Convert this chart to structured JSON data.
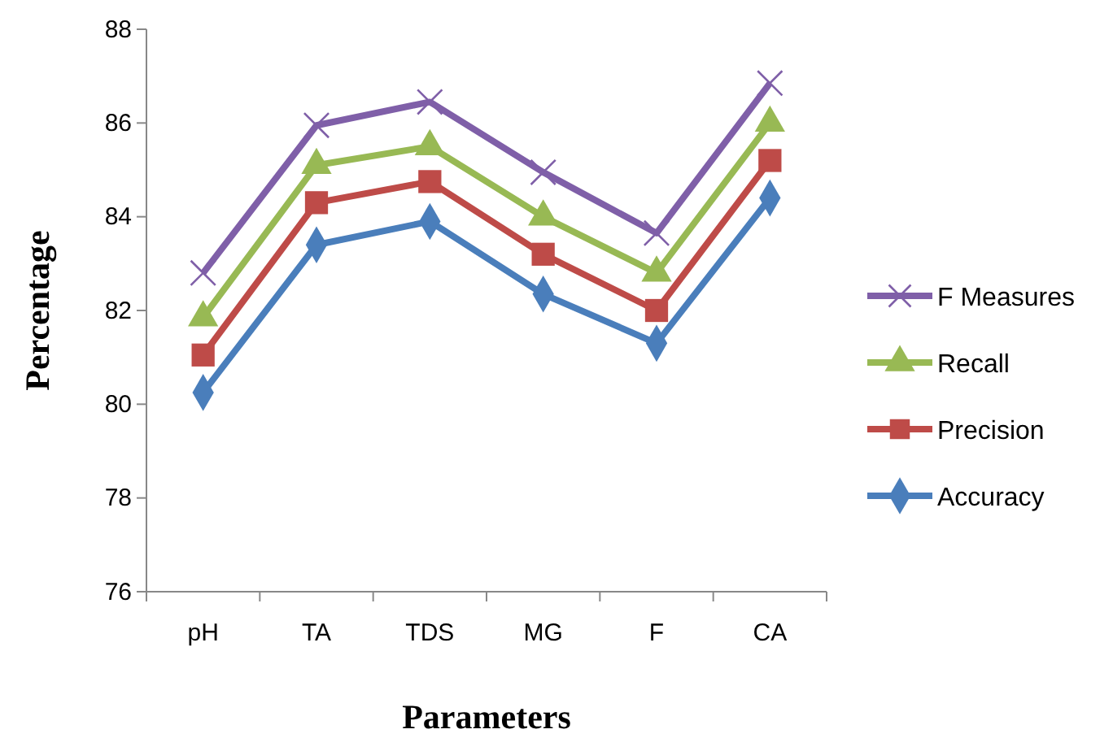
{
  "chart_data": {
    "type": "line",
    "xlabel": "Parameters",
    "ylabel": "Percentage",
    "categories": [
      "pH",
      "TA",
      "TDS",
      "MG",
      "F",
      "CA"
    ],
    "ylim": [
      76,
      88
    ],
    "yticks": [
      76,
      78,
      80,
      82,
      84,
      86,
      88
    ],
    "grid": false,
    "legend": "right",
    "line_style": "solid",
    "series": [
      {
        "name": "F Measures",
        "color": "#7f5fa8",
        "marker": "cross",
        "values": [
          82.8,
          85.95,
          86.45,
          84.95,
          83.65,
          86.85
        ]
      },
      {
        "name": "Recall",
        "color": "#98b954",
        "marker": "triangle",
        "values": [
          81.85,
          85.1,
          85.5,
          84.0,
          82.8,
          86.0
        ]
      },
      {
        "name": "Precision",
        "color": "#be4b48",
        "marker": "square",
        "values": [
          81.05,
          84.3,
          84.75,
          83.2,
          82.0,
          85.2
        ]
      },
      {
        "name": "Accuracy",
        "color": "#4a7ebb",
        "marker": "diamond",
        "values": [
          80.25,
          83.4,
          83.9,
          82.35,
          81.3,
          84.4
        ]
      }
    ]
  }
}
